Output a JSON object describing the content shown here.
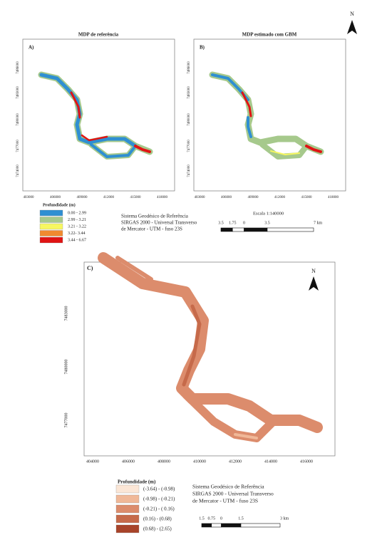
{
  "north": "N",
  "panels": [
    {
      "title": "MDP de referência",
      "label": "A)",
      "yticks": [
        "7486000",
        "7483000",
        "7480000",
        "7477000",
        "7474000"
      ],
      "xticks": [
        "403000",
        "406000",
        "409000",
        "412000",
        "415000",
        "418000"
      ]
    },
    {
      "title": "MDP estimado com GBM",
      "label": "B)",
      "yticks": [
        "7486000",
        "7483000",
        "7480000",
        "7477000",
        "7474000"
      ],
      "xticks": [
        "403000",
        "406000",
        "409000",
        "412000",
        "415000",
        "418000"
      ]
    }
  ],
  "legend_ab": {
    "title": "Profundidade (m)",
    "items": [
      {
        "label": "0.00 - 2.99",
        "color": "#2f8fd2"
      },
      {
        "label": "2.99 - 3.21",
        "color": "#a6c98c"
      },
      {
        "label": "3.21 - 3.22",
        "color": "#f7f760"
      },
      {
        "label": "3.22- 3.44",
        "color": "#f08a30"
      },
      {
        "label": "3.44 - 6.67",
        "color": "#e01414"
      }
    ]
  },
  "crs_ab": [
    "Sistema Geodésico de Referência",
    "SIRGAS 2000 - Universal Transverso",
    "de Mercator - UTM - fuso 23S"
  ],
  "scale_ab": {
    "title": "Escala  1:140000",
    "labels": [
      "3.5",
      "1.75",
      "0",
      "3.5",
      "7 km"
    ]
  },
  "panel_c": {
    "label": "C)",
    "yticks": [
      "7483000",
      "7480000",
      "7477000"
    ],
    "xticks": [
      "404000",
      "406000",
      "408000",
      "410000",
      "412000",
      "414000",
      "416000"
    ]
  },
  "legend_c": {
    "title": "Profundidade (m)",
    "items": [
      {
        "label": "(-3.64) - (-0.98)",
        "color": "#fbe6d6"
      },
      {
        "label": "(-0.98) - (-0.21)",
        "color": "#f0b898"
      },
      {
        "label": "(-0.21) - ( 0.16)",
        "color": "#dc8c6c"
      },
      {
        "label": "(0.16) - (0.68)",
        "color": "#c66a4a"
      },
      {
        "label": "(0.68) - (2.65)",
        "color": "#a8442a"
      }
    ]
  },
  "crs_c": [
    "Sistema Geodésico de Referência",
    "SIRGAS 2000 - Universal Transverso",
    "de Mercator - UTM - fuso 23S"
  ],
  "scale_c": {
    "labels": [
      "1.5",
      "0.75",
      "0",
      "1.5",
      "3 km"
    ]
  }
}
